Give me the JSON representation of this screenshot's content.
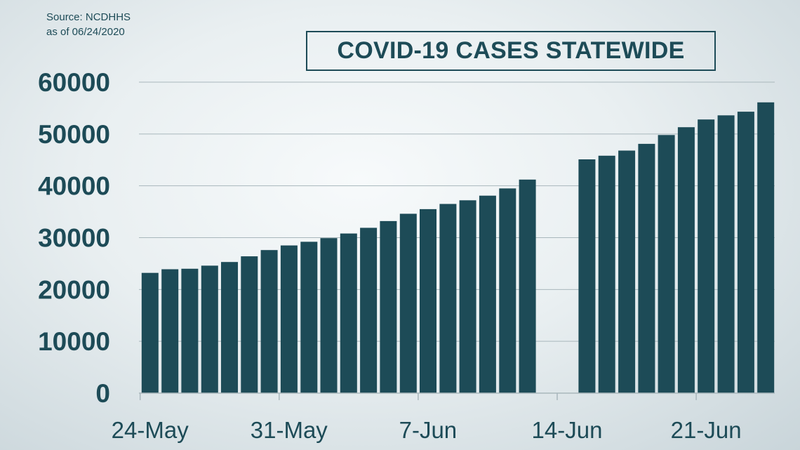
{
  "source": {
    "line1": "Source: NCDHHS",
    "line2": "as of 06/24/2020"
  },
  "colors": {
    "bar": "#1d4b57",
    "text": "#1d4b57",
    "grid": "#a9b7bc"
  },
  "chart_data": {
    "type": "bar",
    "title": "COVID-19 CASES STATEWIDE",
    "xlabel": "",
    "ylabel": "",
    "ylim": [
      0,
      60000
    ],
    "yticks": [
      0,
      10000,
      20000,
      30000,
      40000,
      50000,
      60000
    ],
    "grid": true,
    "x_tick_labels": [
      "24-May",
      "31-May",
      "7-Jun",
      "14-Jun",
      "21-Jun"
    ],
    "categories": [
      "24-May",
      "25-May",
      "26-May",
      "27-May",
      "28-May",
      "29-May",
      "30-May",
      "31-May",
      "1-Jun",
      "2-Jun",
      "3-Jun",
      "4-Jun",
      "5-Jun",
      "6-Jun",
      "7-Jun",
      "8-Jun",
      "9-Jun",
      "10-Jun",
      "11-Jun",
      "12-Jun",
      "13-Jun",
      "14-Jun",
      "15-Jun",
      "16-Jun",
      "17-Jun",
      "18-Jun",
      "19-Jun",
      "20-Jun",
      "21-Jun",
      "22-Jun",
      "23-Jun",
      "24-Jun"
    ],
    "values": [
      23200,
      23900,
      24000,
      24600,
      25300,
      26400,
      27600,
      28500,
      29200,
      29900,
      30800,
      31900,
      33200,
      34600,
      35500,
      36500,
      37200,
      38100,
      39500,
      41200,
      null,
      null,
      45100,
      45800,
      46800,
      48100,
      49800,
      51300,
      52800,
      53600,
      54300,
      56100
    ]
  }
}
